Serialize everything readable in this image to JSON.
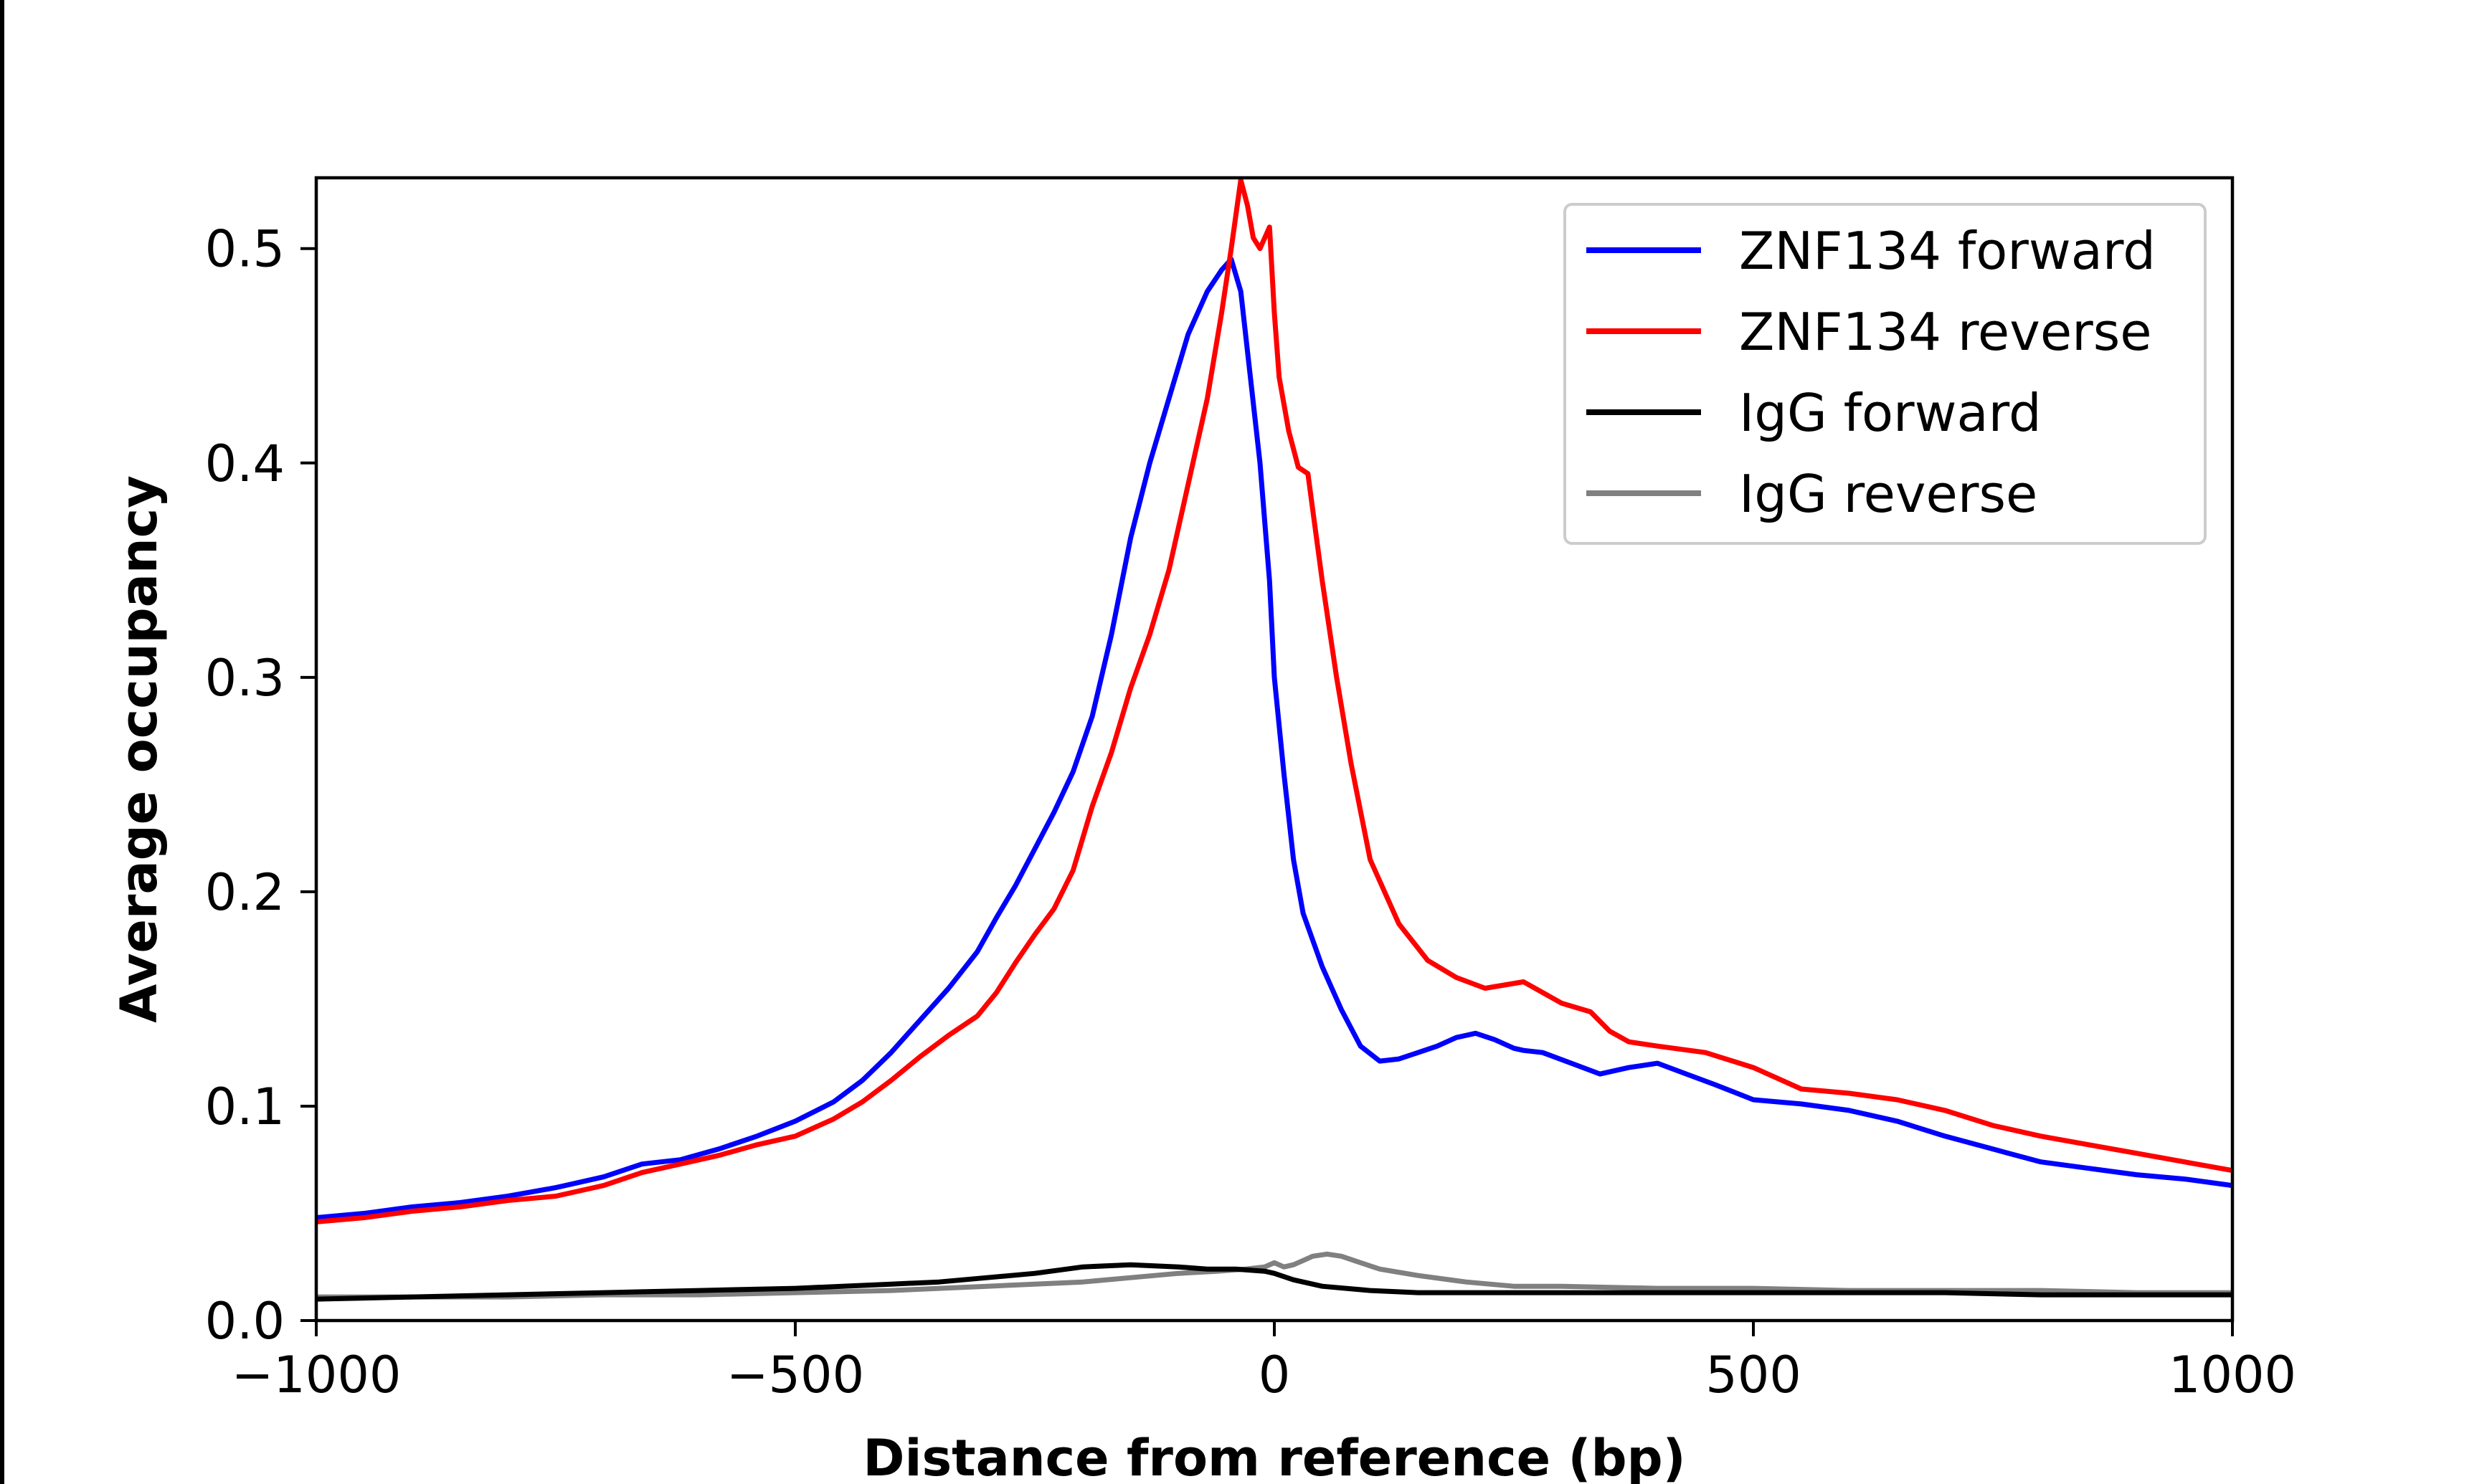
{
  "chart_data": {
    "type": "line",
    "title": "",
    "xlabel": "Distance from reference (bp)",
    "ylabel": "Average occupancy",
    "xlim": [
      -1000,
      1000
    ],
    "ylim": [
      0,
      0.533
    ],
    "xticks": [
      -1000,
      -500,
      0,
      500,
      1000
    ],
    "xtick_labels": [
      "−1000",
      "−500",
      "0",
      "500",
      "1000"
    ],
    "yticks": [
      0.0,
      0.1,
      0.2,
      0.3,
      0.4,
      0.5
    ],
    "ytick_labels": [
      "0.0",
      "0.1",
      "0.2",
      "0.3",
      "0.4",
      "0.5"
    ],
    "grid": false,
    "legend_position": "top-right",
    "series": [
      {
        "name": "ZNF134 forward",
        "color": "#0000ff",
        "x": [
          -1000,
          -950,
          -900,
          -850,
          -800,
          -750,
          -700,
          -660,
          -620,
          -580,
          -540,
          -500,
          -460,
          -430,
          -400,
          -370,
          -340,
          -310,
          -290,
          -270,
          -250,
          -230,
          -210,
          -190,
          -170,
          -150,
          -130,
          -110,
          -90,
          -70,
          -55,
          -45,
          -35,
          -25,
          -15,
          -5,
          0,
          10,
          20,
          30,
          50,
          70,
          90,
          110,
          130,
          150,
          170,
          190,
          210,
          230,
          250,
          260,
          280,
          310,
          340,
          370,
          400,
          430,
          460,
          500,
          550,
          600,
          650,
          700,
          750,
          800,
          850,
          900,
          950,
          1000
        ],
        "y": [
          0.048,
          0.05,
          0.053,
          0.055,
          0.058,
          0.062,
          0.067,
          0.073,
          0.075,
          0.08,
          0.086,
          0.093,
          0.102,
          0.112,
          0.125,
          0.14,
          0.155,
          0.172,
          0.188,
          0.203,
          0.22,
          0.237,
          0.256,
          0.282,
          0.32,
          0.365,
          0.4,
          0.43,
          0.46,
          0.48,
          0.49,
          0.495,
          0.48,
          0.44,
          0.4,
          0.345,
          0.3,
          0.255,
          0.215,
          0.19,
          0.165,
          0.145,
          0.128,
          0.121,
          0.122,
          0.125,
          0.128,
          0.132,
          0.134,
          0.131,
          0.127,
          0.126,
          0.125,
          0.12,
          0.115,
          0.118,
          0.12,
          0.115,
          0.11,
          0.103,
          0.101,
          0.098,
          0.093,
          0.086,
          0.08,
          0.074,
          0.071,
          0.068,
          0.066,
          0.063
        ]
      },
      {
        "name": "ZNF134 reverse",
        "color": "#ff0000",
        "x": [
          -1000,
          -950,
          -900,
          -850,
          -800,
          -750,
          -700,
          -660,
          -620,
          -580,
          -540,
          -500,
          -460,
          -430,
          -400,
          -370,
          -340,
          -310,
          -290,
          -270,
          -250,
          -230,
          -210,
          -190,
          -170,
          -150,
          -130,
          -110,
          -90,
          -70,
          -55,
          -45,
          -35,
          -28,
          -22,
          -15,
          -5,
          0,
          5,
          15,
          25,
          35,
          50,
          65,
          80,
          100,
          130,
          160,
          190,
          220,
          260,
          300,
          330,
          350,
          370,
          400,
          450,
          500,
          550,
          600,
          650,
          700,
          750,
          800,
          850,
          900,
          950,
          1000
        ],
        "y": [
          0.046,
          0.048,
          0.051,
          0.053,
          0.056,
          0.058,
          0.063,
          0.069,
          0.073,
          0.077,
          0.082,
          0.086,
          0.094,
          0.102,
          0.112,
          0.123,
          0.133,
          0.142,
          0.153,
          0.167,
          0.18,
          0.192,
          0.21,
          0.24,
          0.265,
          0.295,
          0.32,
          0.35,
          0.39,
          0.43,
          0.47,
          0.5,
          0.532,
          0.52,
          0.505,
          0.5,
          0.51,
          0.47,
          0.44,
          0.415,
          0.398,
          0.395,
          0.345,
          0.3,
          0.26,
          0.215,
          0.185,
          0.168,
          0.16,
          0.155,
          0.158,
          0.148,
          0.144,
          0.135,
          0.13,
          0.128,
          0.125,
          0.118,
          0.108,
          0.106,
          0.103,
          0.098,
          0.091,
          0.086,
          0.082,
          0.078,
          0.074,
          0.07
        ]
      },
      {
        "name": "IgG forward",
        "color": "#000000",
        "x": [
          -1000,
          -900,
          -800,
          -700,
          -600,
          -500,
          -400,
          -350,
          -300,
          -250,
          -200,
          -150,
          -100,
          -70,
          -40,
          -10,
          0,
          20,
          50,
          100,
          150,
          200,
          300,
          400,
          500,
          600,
          700,
          800,
          900,
          1000
        ],
        "y": [
          0.01,
          0.011,
          0.012,
          0.013,
          0.014,
          0.015,
          0.017,
          0.018,
          0.02,
          0.022,
          0.025,
          0.026,
          0.025,
          0.024,
          0.024,
          0.023,
          0.022,
          0.019,
          0.016,
          0.014,
          0.013,
          0.013,
          0.013,
          0.013,
          0.013,
          0.013,
          0.013,
          0.012,
          0.012,
          0.012
        ]
      },
      {
        "name": "IgG reverse",
        "color": "#808080",
        "x": [
          -1000,
          -900,
          -800,
          -700,
          -600,
          -500,
          -400,
          -300,
          -200,
          -150,
          -100,
          -60,
          -30,
          -10,
          0,
          10,
          20,
          30,
          40,
          55,
          70,
          90,
          110,
          150,
          200,
          250,
          300,
          400,
          500,
          600,
          700,
          800,
          900,
          1000
        ],
        "y": [
          0.011,
          0.011,
          0.011,
          0.012,
          0.012,
          0.013,
          0.014,
          0.016,
          0.018,
          0.02,
          0.022,
          0.023,
          0.024,
          0.025,
          0.027,
          0.025,
          0.026,
          0.028,
          0.03,
          0.031,
          0.03,
          0.027,
          0.024,
          0.021,
          0.018,
          0.016,
          0.016,
          0.015,
          0.015,
          0.014,
          0.014,
          0.014,
          0.013,
          0.013
        ]
      }
    ]
  }
}
